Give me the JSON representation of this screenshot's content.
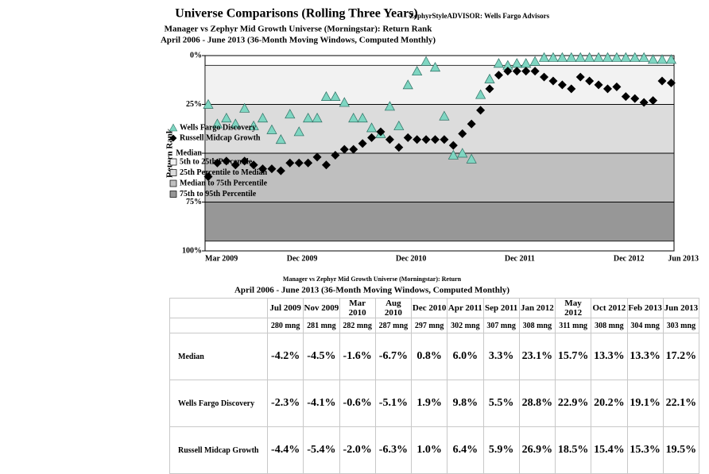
{
  "chart_data": {
    "type": "scatter",
    "title": "Universe Comparisons (Rolling Three Years)",
    "source": "ZephyrStyleADVISOR: Wells Fargo Advisors",
    "subtitle": [
      "Manager vs Zephyr Mid Growth Universe (Morningstar): Return Rank",
      "April 2006 - June 2013 (36-Month Moving Windows, Computed Monthly)"
    ],
    "y_label": "Return Rank",
    "categories": [
      "Mar 2009",
      null,
      null,
      null,
      null,
      null,
      null,
      null,
      null,
      "Dec 2009",
      null,
      null,
      null,
      null,
      null,
      null,
      null,
      null,
      null,
      null,
      null,
      "Dec 2010",
      null,
      null,
      null,
      null,
      null,
      null,
      null,
      null,
      null,
      null,
      null,
      "Dec 2011",
      null,
      null,
      null,
      null,
      null,
      null,
      null,
      null,
      null,
      null,
      null,
      "Dec 2012",
      null,
      null,
      null,
      null,
      null,
      "Jun 2013"
    ],
    "ylim": [
      100,
      0
    ],
    "yticks": [
      {
        "value": 0,
        "label": "0%"
      },
      {
        "value": 25,
        "label": "25%"
      },
      {
        "value": 50,
        "label": "Median"
      },
      {
        "value": 75,
        "label": "75%"
      },
      {
        "value": 100,
        "label": "100%"
      }
    ],
    "grid": true,
    "bands": [
      {
        "name": "5th to 25th Percentile",
        "from": 5,
        "to": 25,
        "color": "#f2f2f2"
      },
      {
        "name": "25th Percentile to Median",
        "from": 25,
        "to": 50,
        "color": "#dcdcdc"
      },
      {
        "name": "Median to 75th Percentile",
        "from": 50,
        "to": 75,
        "color": "#bfbfbf"
      },
      {
        "name": "75th to 95th Percentile",
        "from": 75,
        "to": 95,
        "color": "#979797"
      }
    ],
    "series": [
      {
        "name": "Wells Fargo Discovery",
        "marker": "triangle",
        "color": "#7fd6c2",
        "values": [
          25,
          35,
          32,
          35,
          27,
          36,
          32,
          38,
          43,
          30,
          39,
          32,
          32,
          21,
          21,
          24,
          32,
          32,
          37,
          40,
          26,
          36,
          15,
          8,
          3,
          6,
          31,
          51,
          50,
          53,
          20,
          12,
          4,
          5,
          4,
          4,
          3,
          1,
          1,
          1,
          1,
          1,
          1,
          1,
          1,
          1,
          1,
          1,
          1,
          2,
          2,
          2
        ]
      },
      {
        "name": "Russell Midcap Growth",
        "marker": "diamond",
        "color": "#000000",
        "values": [
          62,
          55,
          54,
          56,
          54,
          56,
          58,
          58,
          59,
          55,
          55,
          55,
          52,
          56,
          51,
          48,
          48,
          45,
          42,
          39,
          43,
          47,
          42,
          43,
          43,
          43,
          43,
          46,
          40,
          35,
          28,
          17,
          10,
          8,
          8,
          8,
          8,
          11,
          13,
          15,
          17,
          11,
          13,
          15,
          17,
          16,
          21,
          22,
          24,
          23,
          13,
          14
        ]
      }
    ]
  },
  "table": {
    "title": [
      "Manager vs Zephyr Mid Growth Universe (Morningstar): Return",
      "April 2006 - June 2013 (36-Month Moving Windows, Computed Monthly)"
    ],
    "columns": [
      "Jul 2009",
      "Nov 2009",
      "Mar 2010",
      "Aug 2010",
      "Dec 2010",
      "Apr 2011",
      "Sep 2011",
      "Jan 2012",
      "May 2012",
      "Oct 2012",
      "Feb 2013",
      "Jun 2013"
    ],
    "counts": [
      "280 mng",
      "281 mng",
      "282 mng",
      "287 mng",
      "297 mng",
      "302 mng",
      "307 mng",
      "308 mng",
      "311 mng",
      "308 mng",
      "304 mng",
      "303 mng"
    ],
    "rows": [
      {
        "label": "Median",
        "values": [
          "-4.2%",
          "-4.5%",
          "-1.6%",
          "-6.7%",
          "0.8%",
          "6.0%",
          "3.3%",
          "23.1%",
          "15.7%",
          "13.3%",
          "13.3%",
          "17.2%"
        ]
      },
      {
        "label": "Wells Fargo Discovery",
        "values": [
          "-2.3%",
          "-4.1%",
          "-0.6%",
          "-5.1%",
          "1.9%",
          "9.8%",
          "5.5%",
          "28.8%",
          "22.9%",
          "20.2%",
          "19.1%",
          "22.1%"
        ]
      },
      {
        "label": "Russell Midcap Growth",
        "values": [
          "-4.4%",
          "-5.4%",
          "-2.0%",
          "-6.3%",
          "1.0%",
          "6.4%",
          "5.9%",
          "26.9%",
          "18.5%",
          "15.4%",
          "15.3%",
          "19.5%"
        ]
      }
    ]
  }
}
